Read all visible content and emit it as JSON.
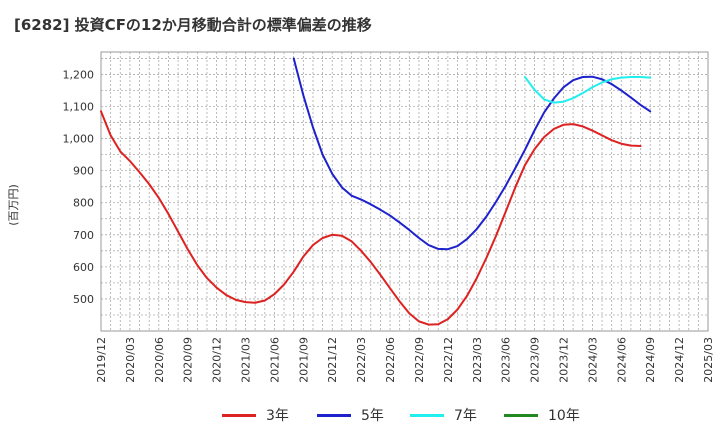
{
  "header": {
    "title": "[6282]  投資CFの12か月移動合計の標準偏差の推移"
  },
  "chart_data": {
    "type": "line",
    "title": "[6282]  投資CFの12か月移動合計の標準偏差の推移",
    "ylabel": "(百万円)",
    "xlabel": "",
    "ylim": [
      400,
      1270
    ],
    "y_ticks": [
      500,
      600,
      700,
      800,
      900,
      1000,
      1100,
      1200
    ],
    "y_tick_labels": [
      "500",
      "600",
      "700",
      "800",
      "900",
      "1,000",
      "1,100",
      "1,200"
    ],
    "x_ticks": [
      "2019/12",
      "2020/03",
      "2020/06",
      "2020/09",
      "2020/12",
      "2021/03",
      "2021/06",
      "2021/09",
      "2021/12",
      "2022/03",
      "2022/06",
      "2022/09",
      "2022/12",
      "2023/03",
      "2023/06",
      "2023/09",
      "2023/12",
      "2024/03",
      "2024/06",
      "2024/09",
      "2024/12",
      "2025/03"
    ],
    "grid": true,
    "legend_position": "bottom",
    "series": [
      {
        "name": "3年",
        "color": "#dd2222",
        "start": "2019/12",
        "values": [
          1085,
          1010,
          960,
          930,
          895,
          858,
          815,
          765,
          710,
          655,
          605,
          565,
          535,
          512,
          497,
          490,
          488,
          495,
          515,
          545,
          585,
          632,
          668,
          690,
          700,
          697,
          680,
          650,
          615,
          575,
          533,
          492,
          455,
          430,
          420,
          421,
          437,
          467,
          510,
          565,
          628,
          697,
          772,
          848,
          917,
          967,
          1005,
          1030,
          1043,
          1045,
          1038,
          1025,
          1010,
          995,
          984,
          978,
          977
        ]
      },
      {
        "name": "5年",
        "color": "#1e22cc",
        "start": "2021/08",
        "values": [
          1250,
          1135,
          1035,
          950,
          890,
          848,
          822,
          810,
          795,
          778,
          760,
          738,
          715,
          690,
          668,
          656,
          655,
          665,
          687,
          718,
          757,
          803,
          853,
          908,
          965,
          1026,
          1082,
          1125,
          1160,
          1182,
          1192,
          1193,
          1185,
          1170,
          1150,
          1128,
          1105,
          1085
        ]
      },
      {
        "name": "7年",
        "color": "#22eeee",
        "start": "2023/08",
        "values": [
          1192,
          1152,
          1122,
          1112,
          1115,
          1126,
          1142,
          1160,
          1175,
          1185,
          1190,
          1192,
          1192,
          1190
        ]
      },
      {
        "name": "10年",
        "color": "#228822",
        "start": "2019/12",
        "values": []
      }
    ]
  }
}
